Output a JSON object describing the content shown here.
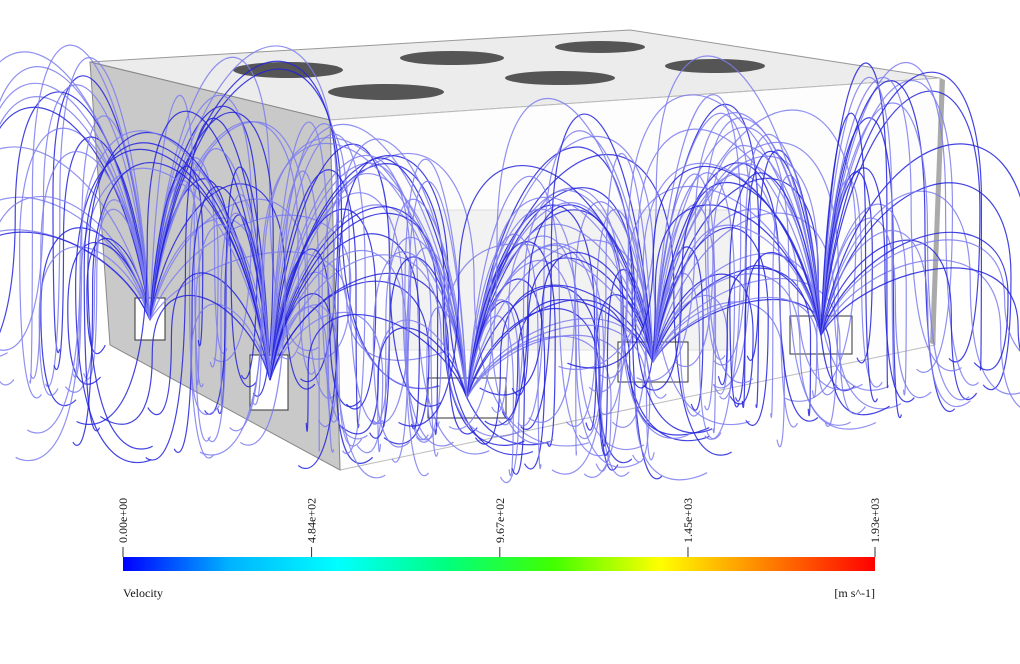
{
  "colorbar": {
    "title": "Velocity",
    "unit": "[m s^-1]",
    "range": [
      0,
      1930
    ],
    "ticks": [
      {
        "value": 0,
        "label": "0.00e+00"
      },
      {
        "value": 484,
        "label": "4.84e+02"
      },
      {
        "value": 967,
        "label": "9.67e+02"
      },
      {
        "value": 1450,
        "label": "1.45e+03"
      },
      {
        "value": 1930,
        "label": "1.93e+03"
      }
    ],
    "colors": [
      "#0000ff",
      "#00b4ff",
      "#00ffff",
      "#00ff80",
      "#40ff00",
      "#ffff00",
      "#ff8000",
      "#ff0000"
    ]
  }
}
